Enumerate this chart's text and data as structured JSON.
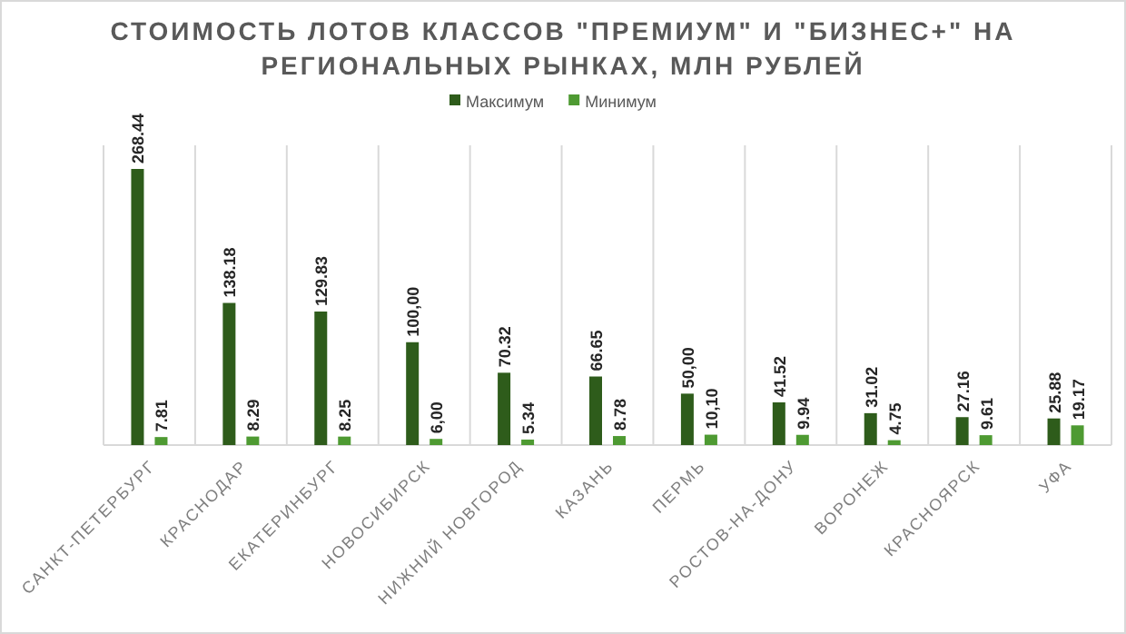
{
  "chart_data": {
    "type": "bar",
    "title": "СТОИМОСТЬ ЛОТОВ КЛАССОВ \"ПРЕМИУМ\" И \"БИЗНЕС+\" НА РЕГИОНАЛЬНЫХ РЫНКАХ, МЛН РУБЛЕЙ",
    "categories": [
      "САНКТ-ПЕТЕРБУРГ",
      "КРАСНОДАР",
      "ЕКАТЕРИНБУРГ",
      "НОВОСИБИРСК",
      "НИЖНИЙ НОВГОРОД",
      "КАЗАНЬ",
      "ПЕРМЬ",
      "РОСТОВ-НА-ДОНУ",
      "ВОРОНЕЖ",
      "КРАСНОЯРСК",
      "УФА"
    ],
    "series": [
      {
        "name": "Максимум",
        "color": "#2e5c1b",
        "values": [
          268.44,
          138.18,
          129.83,
          100.0,
          70.32,
          66.65,
          50.0,
          41.52,
          31.02,
          27.16,
          25.88
        ],
        "value_labels": [
          "268.44",
          "138.18",
          "129.83",
          "100,00",
          "70.32",
          "66.65",
          "50,00",
          "41.52",
          "31.02",
          "27.16",
          "25.88"
        ]
      },
      {
        "name": "Минимум",
        "color": "#4e9a32",
        "values": [
          7.81,
          8.29,
          8.25,
          6.0,
          5.34,
          8.78,
          10.1,
          9.94,
          4.75,
          9.61,
          19.17
        ],
        "value_labels": [
          "7.81",
          "8.29",
          "8.25",
          "6,00",
          "5.34",
          "8.78",
          "10,10",
          "9.94",
          "4.75",
          "9.61",
          "19.17"
        ]
      }
    ],
    "legend": "top",
    "grid": "x"
  }
}
